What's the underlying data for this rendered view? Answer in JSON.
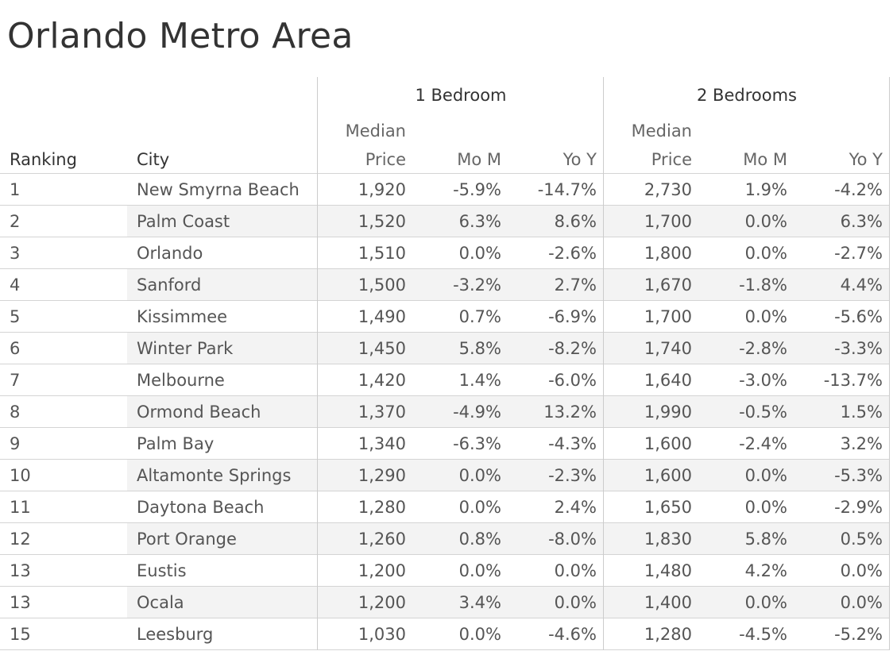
{
  "title": "Orlando Metro Area",
  "header": {
    "ranking": "Ranking",
    "city": "City",
    "groups": [
      "1 Bedroom",
      "2 Bedrooms"
    ],
    "sub": {
      "median_line1": "Median",
      "median_line2": "Price",
      "mom": "Mo M",
      "yoy": "Yo Y"
    }
  },
  "chart_data": {
    "type": "table",
    "title": "Orlando Metro Area",
    "columns": [
      "Ranking",
      "City",
      "1 Bedroom Median Price",
      "1 Bedroom Mo M",
      "1 Bedroom Yo Y",
      "2 Bedrooms Median Price",
      "2 Bedrooms Mo M",
      "2 Bedrooms Yo Y"
    ],
    "rows": [
      {
        "rank": "1",
        "city": "New Smyrna Beach",
        "b1_price": "1,920",
        "b1_mom": "-5.9%",
        "b1_yoy": "-14.7%",
        "b2_price": "2,730",
        "b2_mom": "1.9%",
        "b2_yoy": "-4.2%"
      },
      {
        "rank": "2",
        "city": "Palm Coast",
        "b1_price": "1,520",
        "b1_mom": "6.3%",
        "b1_yoy": "8.6%",
        "b2_price": "1,700",
        "b2_mom": "0.0%",
        "b2_yoy": "6.3%"
      },
      {
        "rank": "3",
        "city": "Orlando",
        "b1_price": "1,510",
        "b1_mom": "0.0%",
        "b1_yoy": "-2.6%",
        "b2_price": "1,800",
        "b2_mom": "0.0%",
        "b2_yoy": "-2.7%"
      },
      {
        "rank": "4",
        "city": "Sanford",
        "b1_price": "1,500",
        "b1_mom": "-3.2%",
        "b1_yoy": "2.7%",
        "b2_price": "1,670",
        "b2_mom": "-1.8%",
        "b2_yoy": "4.4%"
      },
      {
        "rank": "5",
        "city": "Kissimmee",
        "b1_price": "1,490",
        "b1_mom": "0.7%",
        "b1_yoy": "-6.9%",
        "b2_price": "1,700",
        "b2_mom": "0.0%",
        "b2_yoy": "-5.6%"
      },
      {
        "rank": "6",
        "city": "Winter Park",
        "b1_price": "1,450",
        "b1_mom": "5.8%",
        "b1_yoy": "-8.2%",
        "b2_price": "1,740",
        "b2_mom": "-2.8%",
        "b2_yoy": "-3.3%"
      },
      {
        "rank": "7",
        "city": "Melbourne",
        "b1_price": "1,420",
        "b1_mom": "1.4%",
        "b1_yoy": "-6.0%",
        "b2_price": "1,640",
        "b2_mom": "-3.0%",
        "b2_yoy": "-13.7%"
      },
      {
        "rank": "8",
        "city": "Ormond Beach",
        "b1_price": "1,370",
        "b1_mom": "-4.9%",
        "b1_yoy": "13.2%",
        "b2_price": "1,990",
        "b2_mom": "-0.5%",
        "b2_yoy": "1.5%"
      },
      {
        "rank": "9",
        "city": "Palm Bay",
        "b1_price": "1,340",
        "b1_mom": "-6.3%",
        "b1_yoy": "-4.3%",
        "b2_price": "1,600",
        "b2_mom": "-2.4%",
        "b2_yoy": "3.2%"
      },
      {
        "rank": "10",
        "city": "Altamonte Springs",
        "b1_price": "1,290",
        "b1_mom": "0.0%",
        "b1_yoy": "-2.3%",
        "b2_price": "1,600",
        "b2_mom": "0.0%",
        "b2_yoy": "-5.3%"
      },
      {
        "rank": "11",
        "city": "Daytona Beach",
        "b1_price": "1,280",
        "b1_mom": "0.0%",
        "b1_yoy": "2.4%",
        "b2_price": "1,650",
        "b2_mom": "0.0%",
        "b2_yoy": "-2.9%"
      },
      {
        "rank": "12",
        "city": "Port Orange",
        "b1_price": "1,260",
        "b1_mom": "0.8%",
        "b1_yoy": "-8.0%",
        "b2_price": "1,830",
        "b2_mom": "5.8%",
        "b2_yoy": "0.5%"
      },
      {
        "rank": "13",
        "city": "Eustis",
        "b1_price": "1,200",
        "b1_mom": "0.0%",
        "b1_yoy": "0.0%",
        "b2_price": "1,480",
        "b2_mom": "4.2%",
        "b2_yoy": "0.0%"
      },
      {
        "rank": "13",
        "city": "Ocala",
        "b1_price": "1,200",
        "b1_mom": "3.4%",
        "b1_yoy": "0.0%",
        "b2_price": "1,400",
        "b2_mom": "0.0%",
        "b2_yoy": "0.0%"
      },
      {
        "rank": "15",
        "city": "Leesburg",
        "b1_price": "1,030",
        "b1_mom": "0.0%",
        "b1_yoy": "-4.6%",
        "b2_price": "1,280",
        "b2_mom": "-4.5%",
        "b2_yoy": "-5.2%"
      }
    ]
  }
}
